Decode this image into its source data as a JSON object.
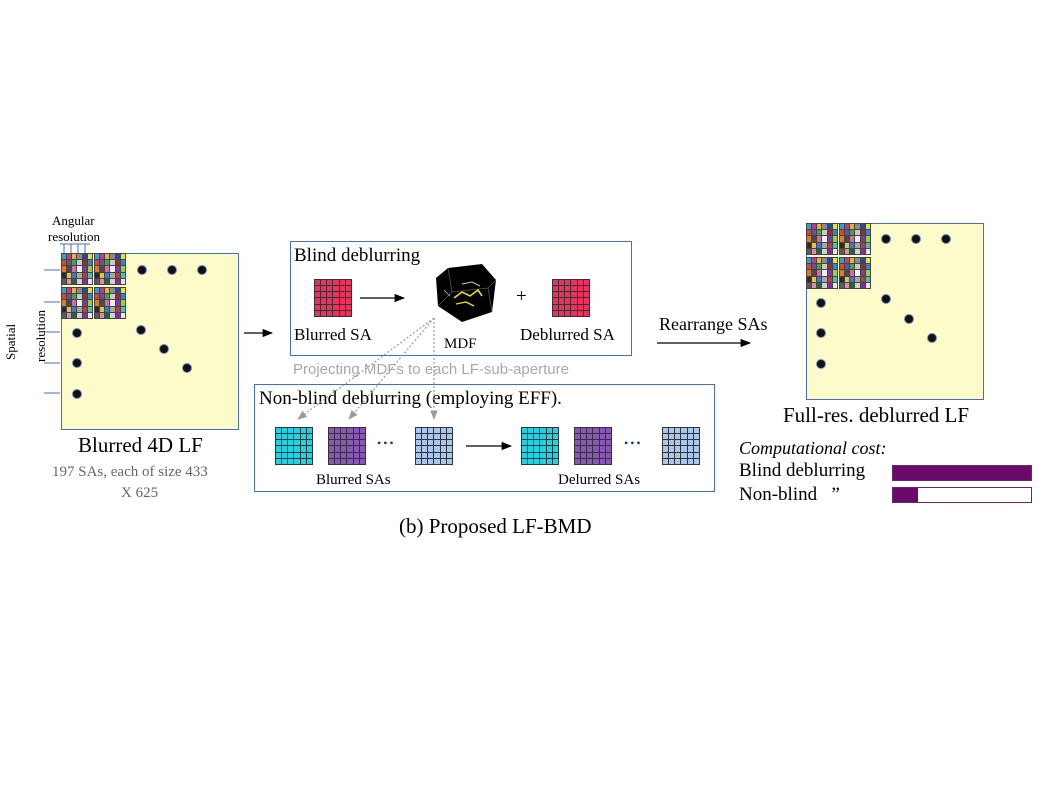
{
  "left": {
    "angular_label_line1": "Angular",
    "angular_label_line2": "resolution",
    "spatial_label_line1": "Spatial",
    "spatial_label_line2": "resolution",
    "title": "Blurred 4D LF",
    "subtitle_line1": "197 SAs, each of size 433",
    "subtitle_line2": "X 625"
  },
  "blind": {
    "title": "Blind deblurring",
    "blurred_label": "Blurred SA",
    "mdf_label": "MDF",
    "plus": "+",
    "deblurred_label": "Deblurred SA",
    "grid_color": "#f0305a"
  },
  "projection_note": "Projecting MDFs to each LF-sub-aperture",
  "nonblind": {
    "title": "Non-blind deblurring (employing EFF).",
    "blurred_label": "Blurred SAs",
    "deblurred_label": "Delurred SAs",
    "ellipsis": "•••",
    "colors": [
      "#1ed3e6",
      "#8a55b8",
      "#a9c6ee"
    ]
  },
  "rearrange_label": "Rearrange SAs",
  "right": {
    "title": "Full-res. deblurred LF"
  },
  "cost": {
    "heading": "Computational cost:",
    "rows": [
      {
        "label": "Blind deblurring",
        "fraction": 1.0
      },
      {
        "label": "Non-blind   ”",
        "fraction": 0.18
      }
    ],
    "bar_color": "#6b0a6b"
  },
  "caption": "(b) Proposed LF-BMD",
  "icons": [
    "right-arrow-icon",
    "color-checker-icon",
    "mdf-cube-icon",
    "dashed-arrow-icon"
  ]
}
